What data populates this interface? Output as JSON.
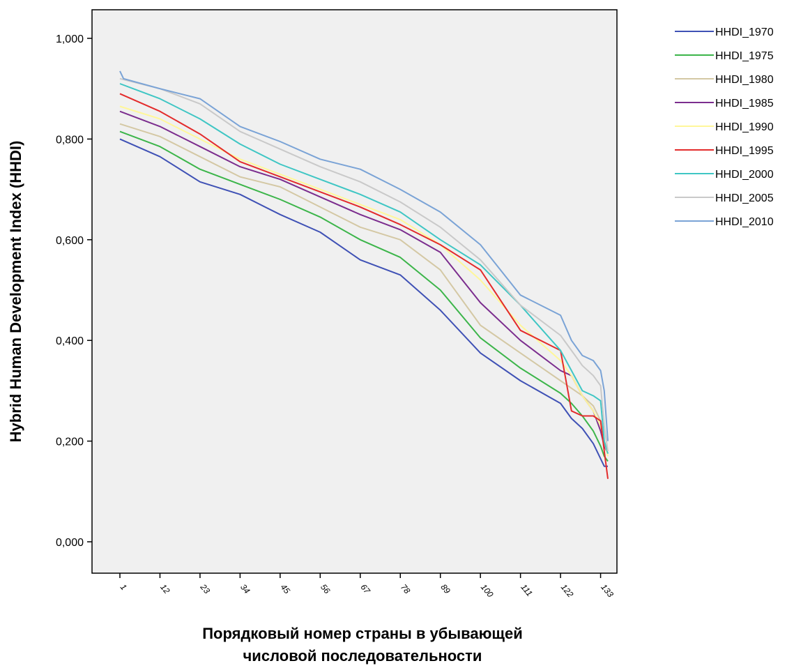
{
  "chart_data": {
    "type": "line",
    "title": "",
    "ylabel": "Hybrid Human Development Index (HHDI)",
    "xlabel_lines": [
      "Порядковый номер страны в убывающей",
      "числовой последовательности"
    ],
    "xlim": [
      1,
      135
    ],
    "ylim": [
      0,
      1.0
    ],
    "ytick_values": [
      0,
      0.2,
      0.4,
      0.6,
      0.8,
      1.0
    ],
    "ytick_labels": [
      "0,000",
      "0,200",
      "0,400",
      "0,600",
      "0,800",
      "1,000"
    ],
    "xtick_values": [
      1,
      12,
      23,
      34,
      45,
      56,
      67,
      78,
      89,
      100,
      111,
      122,
      133
    ],
    "xtick_labels": [
      "1",
      "12",
      "23",
      "34",
      "45",
      "56",
      "67",
      "78",
      "89",
      "100",
      "111",
      "122",
      "133"
    ],
    "grid": false,
    "background": "#f0f0f0",
    "legend_position": "top-right, outside plot",
    "series": [
      {
        "name": "HHDI_1970",
        "color": "#3f51b5",
        "x": [
          1,
          12,
          23,
          34,
          45,
          56,
          67,
          78,
          89,
          100,
          111,
          122,
          125,
          128,
          131,
          133,
          134,
          135
        ],
        "y": [
          0.8,
          0.765,
          0.715,
          0.69,
          0.65,
          0.615,
          0.56,
          0.53,
          0.46,
          0.375,
          0.32,
          0.275,
          0.245,
          0.225,
          0.195,
          0.165,
          0.15,
          0.15
        ]
      },
      {
        "name": "HHDI_1975",
        "color": "#3cb54a",
        "x": [
          1,
          12,
          23,
          34,
          45,
          56,
          67,
          78,
          89,
          100,
          111,
          122,
          125,
          128,
          131,
          133,
          134,
          135
        ],
        "y": [
          0.815,
          0.785,
          0.74,
          0.71,
          0.68,
          0.645,
          0.6,
          0.565,
          0.5,
          0.405,
          0.345,
          0.295,
          0.275,
          0.25,
          0.22,
          0.19,
          0.17,
          0.16
        ]
      },
      {
        "name": "HHDI_1980",
        "color": "#d4c8a4",
        "x": [
          1,
          12,
          23,
          34,
          45,
          56,
          67,
          78,
          89,
          100,
          111,
          122,
          125,
          128,
          131,
          133,
          134,
          135
        ],
        "y": [
          0.83,
          0.805,
          0.765,
          0.725,
          0.705,
          0.665,
          0.625,
          0.6,
          0.54,
          0.43,
          0.375,
          0.32,
          0.305,
          0.29,
          0.27,
          0.24,
          0.2,
          0.18
        ]
      },
      {
        "name": "HHDI_1985",
        "color": "#7b2d8e",
        "x": [
          1,
          12,
          23,
          34,
          45,
          56,
          67,
          78,
          89,
          100,
          111,
          122,
          125,
          128,
          131,
          133,
          134,
          135
        ],
        "y": [
          0.855,
          0.825,
          0.785,
          0.745,
          0.72,
          0.685,
          0.65,
          0.62,
          0.575,
          0.475,
          0.4,
          0.34,
          0.33,
          0.29,
          0.26,
          0.22,
          0.19,
          0.175
        ]
      },
      {
        "name": "HHDI_1990",
        "color": "#fff799",
        "x": [
          1,
          12,
          23,
          34,
          45,
          56,
          67,
          78,
          89,
          100,
          111,
          122,
          125,
          128,
          131,
          133,
          134,
          135
        ],
        "y": [
          0.865,
          0.84,
          0.8,
          0.76,
          0.73,
          0.7,
          0.67,
          0.64,
          0.59,
          0.52,
          0.43,
          0.36,
          0.33,
          0.29,
          0.26,
          0.23,
          0.2,
          0.17
        ]
      },
      {
        "name": "HHDI_1995",
        "color": "#e32b2b",
        "x": [
          1,
          12,
          23,
          34,
          45,
          56,
          67,
          78,
          89,
          100,
          111,
          122,
          125,
          128,
          131,
          133,
          134,
          135
        ],
        "y": [
          0.89,
          0.855,
          0.81,
          0.755,
          0.725,
          0.695,
          0.665,
          0.63,
          0.59,
          0.54,
          0.42,
          0.38,
          0.26,
          0.25,
          0.25,
          0.24,
          0.18,
          0.125
        ]
      },
      {
        "name": "HHDI_2000",
        "color": "#3fc6c4",
        "x": [
          1,
          12,
          23,
          34,
          45,
          56,
          67,
          78,
          89,
          100,
          111,
          122,
          125,
          128,
          131,
          133,
          134,
          135
        ],
        "y": [
          0.91,
          0.88,
          0.84,
          0.79,
          0.75,
          0.72,
          0.69,
          0.655,
          0.6,
          0.55,
          0.47,
          0.38,
          0.34,
          0.3,
          0.29,
          0.28,
          0.2,
          0.175
        ]
      },
      {
        "name": "HHDI_2005",
        "color": "#c9c9c9",
        "x": [
          1,
          12,
          23,
          34,
          45,
          56,
          67,
          78,
          89,
          100,
          111,
          122,
          125,
          128,
          131,
          133,
          134,
          135
        ],
        "y": [
          0.92,
          0.9,
          0.87,
          0.815,
          0.78,
          0.745,
          0.715,
          0.675,
          0.625,
          0.56,
          0.47,
          0.41,
          0.38,
          0.35,
          0.33,
          0.31,
          0.23,
          0.18
        ]
      },
      {
        "name": "HHDI_2010",
        "color": "#7aa3d6",
        "x": [
          1,
          2,
          12,
          23,
          34,
          45,
          56,
          67,
          78,
          89,
          100,
          111,
          122,
          125,
          128,
          131,
          133,
          134,
          135
        ],
        "y": [
          0.935,
          0.92,
          0.9,
          0.88,
          0.825,
          0.795,
          0.76,
          0.74,
          0.7,
          0.655,
          0.59,
          0.49,
          0.45,
          0.4,
          0.37,
          0.36,
          0.34,
          0.3,
          0.2
        ]
      }
    ]
  }
}
